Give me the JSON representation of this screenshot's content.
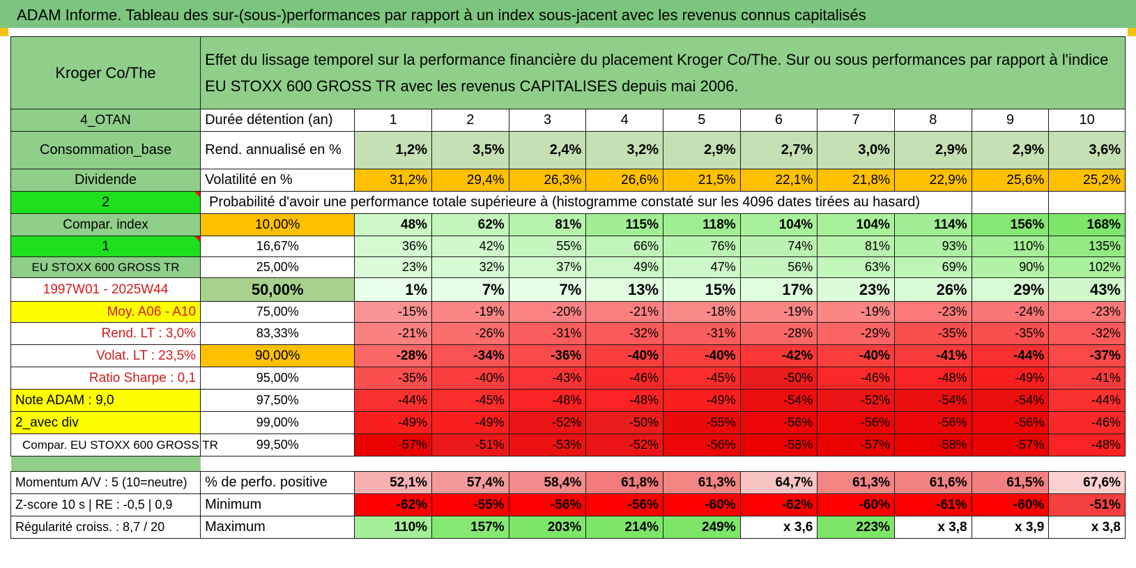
{
  "title": "ADAM Informe. Tableau des sur-(sous-)performances par rapport à un index sous-jacent avec les revenus connus capitalisés",
  "header": {
    "company": "Kroger Co/The",
    "description": "Effet du lissage temporel sur la performance financière du placement Kroger Co/The. Sur ou sous performances par rapport à l'indice EU STOXX 600 GROSS TR avec les revenus CAPITALISES depuis mai 2006."
  },
  "years": [
    "1",
    "2",
    "3",
    "4",
    "5",
    "6",
    "7",
    "8",
    "9",
    "10"
  ],
  "stat_rows": [
    {
      "left": "4_OTAN",
      "label": "Durée détention (an)",
      "key": "years"
    },
    {
      "left": "Consommation_base",
      "label": "Rend. annualisé en %",
      "values": [
        "1,2%",
        "3,5%",
        "2,4%",
        "3,2%",
        "2,9%",
        "2,7%",
        "3,0%",
        "2,9%",
        "2,9%",
        "3,6%"
      ]
    },
    {
      "left": "Dividende",
      "label": "Volatilité en %",
      "values": [
        "31,2%",
        "29,4%",
        "26,3%",
        "26,6%",
        "21,5%",
        "22,1%",
        "21,8%",
        "22,9%",
        "25,6%",
        "25,2%"
      ]
    }
  ],
  "prob_row": {
    "left": "2",
    "text": "Probabilité d'avoir une performance totale supérieure à (histogramme constaté sur les 4096 dates tirées au hasard)"
  },
  "pct_rows": [
    {
      "left": "Compar. index",
      "pct": "10,00%",
      "values": [
        "48%",
        "62%",
        "81%",
        "115%",
        "118%",
        "104%",
        "104%",
        "114%",
        "156%",
        "168%"
      ]
    },
    {
      "left": "1",
      "pct": "16,67%",
      "values": [
        "36%",
        "42%",
        "55%",
        "66%",
        "76%",
        "74%",
        "81%",
        "93%",
        "110%",
        "135%"
      ]
    },
    {
      "left": "EU STOXX 600 GROSS TR",
      "pct": "25,00%",
      "values": [
        "23%",
        "32%",
        "37%",
        "49%",
        "47%",
        "56%",
        "63%",
        "69%",
        "90%",
        "102%"
      ]
    },
    {
      "left": "1997W01 - 2025W44",
      "pct": "50,00%",
      "values": [
        "1%",
        "7%",
        "7%",
        "13%",
        "15%",
        "17%",
        "23%",
        "26%",
        "29%",
        "43%"
      ]
    },
    {
      "left": "Moy. A06 - A10",
      "pct": "75,00%",
      "values": [
        "-15%",
        "-19%",
        "-20%",
        "-21%",
        "-18%",
        "-19%",
        "-19%",
        "-23%",
        "-24%",
        "-23%"
      ]
    },
    {
      "left": "Rend. LT :   3,0%",
      "pct": "83,33%",
      "values": [
        "-21%",
        "-26%",
        "-31%",
        "-32%",
        "-31%",
        "-28%",
        "-29%",
        "-35%",
        "-35%",
        "-32%"
      ]
    },
    {
      "left": "Volat. LT :   23,5%",
      "pct": "90,00%",
      "values": [
        "-28%",
        "-34%",
        "-36%",
        "-40%",
        "-40%",
        "-42%",
        "-40%",
        "-41%",
        "-44%",
        "-37%"
      ]
    },
    {
      "left": "Ratio Sharpe :     0,1",
      "pct": "95,00%",
      "values": [
        "-35%",
        "-40%",
        "-43%",
        "-46%",
        "-45%",
        "-50%",
        "-46%",
        "-48%",
        "-49%",
        "-41%"
      ]
    },
    {
      "left": "Note ADAM : 9,0",
      "pct": "97,50%",
      "values": [
        "-44%",
        "-45%",
        "-48%",
        "-48%",
        "-49%",
        "-54%",
        "-52%",
        "-54%",
        "-54%",
        "-44%"
      ]
    },
    {
      "left": "2_avec div",
      "pct": "99,00%",
      "values": [
        "-49%",
        "-49%",
        "-52%",
        "-50%",
        "-55%",
        "-56%",
        "-56%",
        "-56%",
        "-56%",
        "-46%"
      ]
    },
    {
      "left": "Compar. EU STOXX 600 GROSS TR",
      "pct": "99,50%",
      "values": [
        "-57%",
        "-51%",
        "-53%",
        "-52%",
        "-56%",
        "-58%",
        "-57%",
        "-58%",
        "-57%",
        "-48%"
      ]
    }
  ],
  "bottom_rows": [
    {
      "left": "Momentum A/V : 5 (10=neutre)",
      "label": "% de perfo. positive",
      "values": [
        "52,1%",
        "57,4%",
        "58,4%",
        "61,8%",
        "61,3%",
        "64,7%",
        "61,3%",
        "61,6%",
        "61,5%",
        "67,6%"
      ]
    },
    {
      "left": "Z-score 10 s | RE : -0,5 | 0,9",
      "label": "Minimum",
      "values": [
        "-62%",
        "-55%",
        "-56%",
        "-56%",
        "-60%",
        "-62%",
        "-60%",
        "-61%",
        "-60%",
        "-51%"
      ]
    },
    {
      "left": "Régularité croiss. : 8,7 / 20",
      "label": "Maximum",
      "values": [
        "110%",
        "157%",
        "203%",
        "214%",
        "249%",
        "x 3,6",
        "223%",
        "x 3,8",
        "x 3,9",
        "x 3,8"
      ]
    }
  ],
  "colors": {
    "green_header": "#8fcf8a",
    "title_bar": "#7cc57e",
    "orange": "#ffc000",
    "yellow": "#ffff00",
    "bright_green": "#1ee01e",
    "red_text": "#d11a1a"
  }
}
